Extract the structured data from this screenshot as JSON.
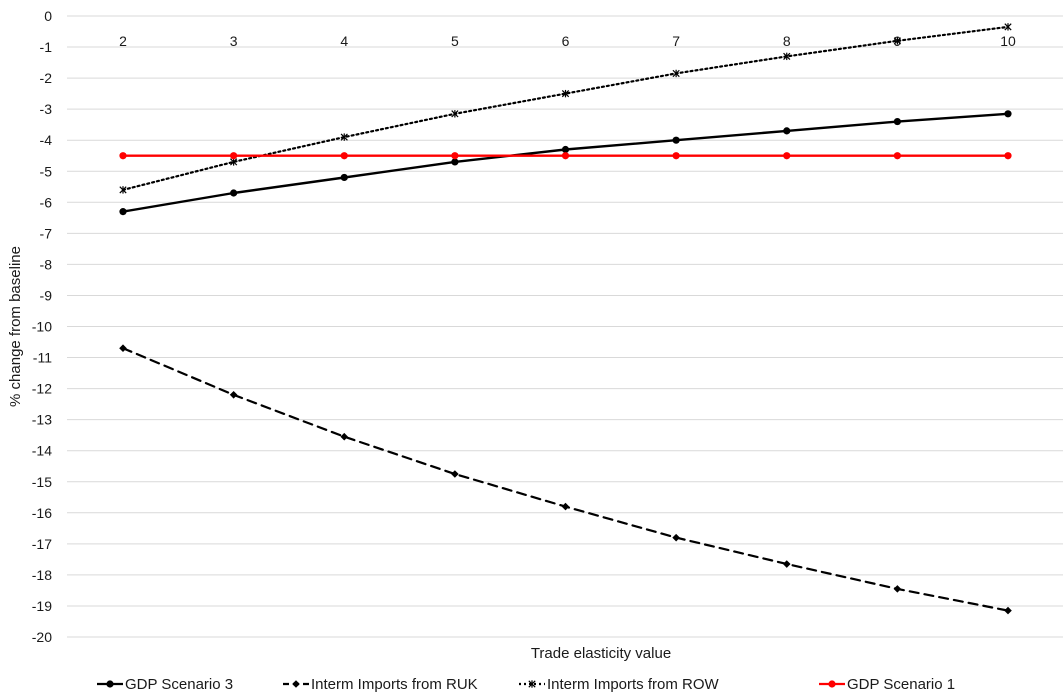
{
  "chart_data": {
    "type": "line",
    "title": "",
    "xlabel": "Trade elasticity value",
    "ylabel": "% change from baseline",
    "x": [
      2,
      3,
      4,
      5,
      6,
      7,
      8,
      9,
      10
    ],
    "xlim": [
      2,
      10
    ],
    "ylim": [
      -20,
      0
    ],
    "yticks": [
      0,
      -1,
      -2,
      -3,
      -4,
      -5,
      -6,
      -7,
      -8,
      -9,
      -10,
      -11,
      -12,
      -13,
      -14,
      -15,
      -16,
      -17,
      -18,
      -19,
      -20
    ],
    "grid": "horizontal",
    "legend_position": "bottom",
    "series": [
      {
        "name": "GDP Scenario 3",
        "values": [
          -6.3,
          -5.7,
          -5.2,
          -4.7,
          -4.3,
          -4.0,
          -3.7,
          -3.4,
          -3.15
        ],
        "color": "#000000",
        "line_style": "solid",
        "marker": "circle"
      },
      {
        "name": "Interm Imports from RUK",
        "values": [
          -10.7,
          -12.2,
          -13.55,
          -14.75,
          -15.8,
          -16.8,
          -17.65,
          -18.45,
          -19.15
        ],
        "color": "#000000",
        "line_style": "dashed",
        "marker": "diamond"
      },
      {
        "name": "Interm Imports from ROW",
        "values": [
          -5.6,
          -4.7,
          -3.9,
          -3.15,
          -2.5,
          -1.85,
          -1.3,
          -0.8,
          -0.35
        ],
        "color": "#000000",
        "line_style": "dotted",
        "marker": "star"
      },
      {
        "name": "GDP Scenario 1",
        "values": [
          -4.5,
          -4.5,
          -4.5,
          -4.5,
          -4.5,
          -4.5,
          -4.5,
          -4.5,
          -4.5
        ],
        "color": "#ff0000",
        "line_style": "solid",
        "marker": "circle"
      }
    ]
  }
}
